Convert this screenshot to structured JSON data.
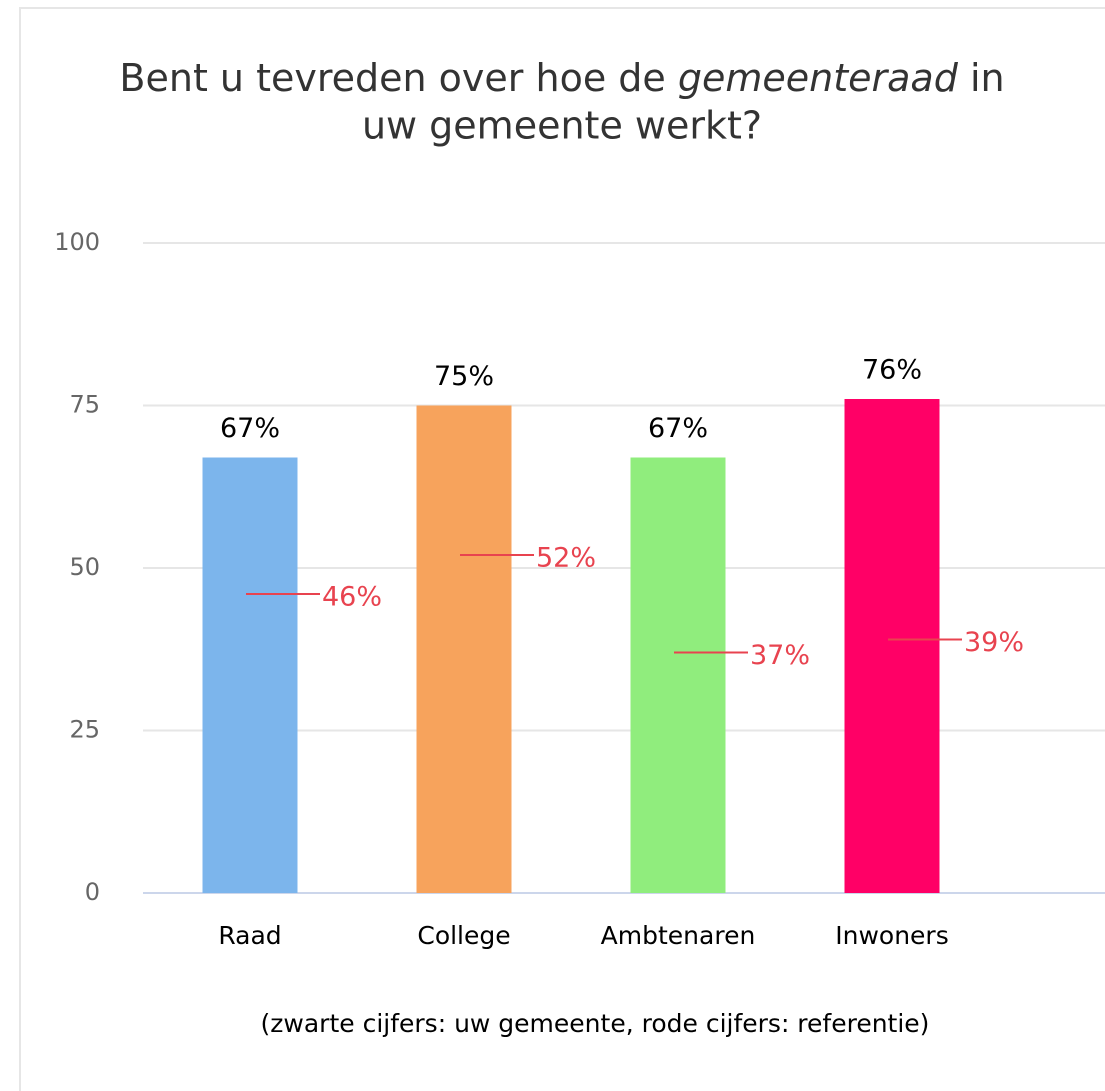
{
  "chart_data": {
    "type": "bar",
    "title": [
      "Bent u tevreden over hoe de",
      "gemeenteraad",
      "in",
      "uw gemeente werkt?"
    ],
    "categories": [
      "Raad",
      "College",
      "Ambtenaren",
      "Inwoners"
    ],
    "series": [
      {
        "values": [
          67,
          75,
          67,
          76
        ],
        "value_labels": [
          "67%",
          "75%",
          "67%",
          "76%"
        ],
        "colors": [
          "#7cb5ec",
          "#f7a35c",
          "#90ed7d",
          "#ff0066"
        ]
      },
      {
        "values": [
          46,
          52,
          37,
          39
        ],
        "value_labels": [
          "46%",
          "52%",
          "37%",
          "39%"
        ],
        "color": "#e8434f"
      }
    ],
    "ylim": [
      0,
      100
    ],
    "yticks": [
      0,
      25,
      50,
      75,
      100
    ],
    "grid": true,
    "note": "(zwarte cijfers: uw gemeente, rode cijfers: referentie)"
  }
}
